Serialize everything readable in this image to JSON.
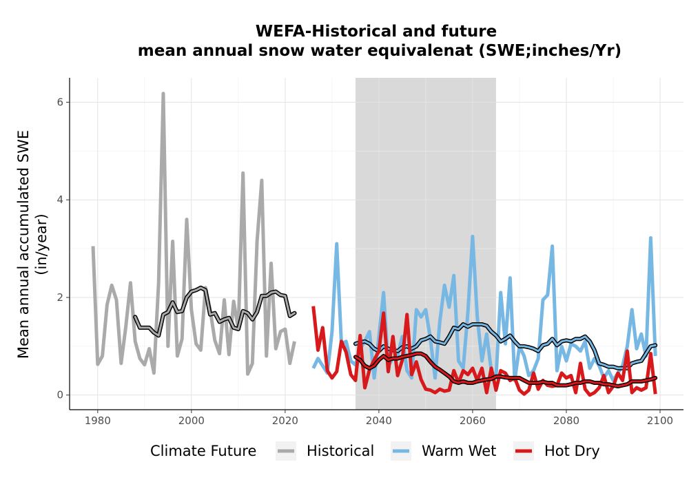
{
  "chart_data": {
    "type": "line",
    "title_line1": "WEFA-Historical and future",
    "title_line2": "mean annual snow water equivalenat (SWE;inches/Yr)",
    "ylabel_line1": "Mean annual accumulated SWE",
    "ylabel_line2": "(in/year)",
    "xlabel": "",
    "xlim": [
      1974,
      2105
    ],
    "ylim": [
      -0.3,
      6.5
    ],
    "x_ticks": [
      1980,
      2000,
      2020,
      2040,
      2060,
      2080,
      2100
    ],
    "y_ticks": [
      0,
      2,
      4,
      6
    ],
    "grid": true,
    "shaded_period": [
      2035,
      2065
    ],
    "legend": {
      "title": "Climate Future",
      "position": "bottom",
      "entries": [
        "Historical",
        "Warm Wet",
        "Hot Dry"
      ]
    },
    "colors": {
      "Historical": "#aaaaaa",
      "Warm Wet": "#77b7e3",
      "Hot Dry": "#d7191c",
      "smooth_outline": "#000000",
      "shade": "#d9d9d9"
    },
    "series": [
      {
        "name": "Historical",
        "x": [
          1979,
          1980,
          1981,
          1982,
          1983,
          1984,
          1985,
          1986,
          1987,
          1988,
          1989,
          1990,
          1991,
          1992,
          1993,
          1994,
          1995,
          1996,
          1997,
          1998,
          1999,
          2000,
          2001,
          2002,
          2003,
          2004,
          2005,
          2006,
          2007,
          2008,
          2009,
          2010,
          2011,
          2012,
          2013,
          2014,
          2015,
          2016,
          2017,
          2018,
          2019,
          2020,
          2021,
          2022
        ],
        "values": [
          3.05,
          0.63,
          0.8,
          1.85,
          2.25,
          1.95,
          0.65,
          1.4,
          2.3,
          1.1,
          0.75,
          0.62,
          0.95,
          0.45,
          2.3,
          6.18,
          1.0,
          3.15,
          0.8,
          1.15,
          3.6,
          1.75,
          1.05,
          0.92,
          2.2,
          1.75,
          1.12,
          0.85,
          1.95,
          0.83,
          1.92,
          1.35,
          4.55,
          0.43,
          0.65,
          3.15,
          4.4,
          0.8,
          2.7,
          0.95,
          1.3,
          1.35,
          0.65,
          1.1
        ]
      },
      {
        "name": "Historical-smoothed",
        "x": [
          1988,
          1989,
          1990,
          1991,
          1992,
          1993,
          1994,
          1995,
          1996,
          1997,
          1998,
          1999,
          2000,
          2001,
          2002,
          2003,
          2004,
          2005,
          2006,
          2007,
          2008,
          2009,
          2010,
          2011,
          2012,
          2013,
          2014,
          2015,
          2016,
          2017,
          2018,
          2019,
          2020,
          2021,
          2022
        ],
        "values": [
          1.6,
          1.38,
          1.38,
          1.38,
          1.28,
          1.22,
          1.65,
          1.7,
          1.9,
          1.7,
          1.72,
          2.0,
          2.12,
          2.15,
          2.2,
          2.15,
          1.65,
          1.68,
          1.5,
          1.55,
          1.58,
          1.38,
          1.35,
          1.72,
          1.68,
          1.55,
          1.7,
          2.03,
          2.03,
          2.1,
          2.12,
          2.05,
          2.03,
          1.62,
          1.68
        ]
      },
      {
        "name": "Warm Wet",
        "x": [
          2026,
          2027,
          2028,
          2029,
          2030,
          2031,
          2032,
          2033,
          2034,
          2035,
          2036,
          2037,
          2038,
          2039,
          2040,
          2041,
          2042,
          2043,
          2044,
          2045,
          2046,
          2047,
          2048,
          2049,
          2050,
          2051,
          2052,
          2053,
          2054,
          2055,
          2056,
          2057,
          2058,
          2059,
          2060,
          2061,
          2062,
          2063,
          2064,
          2065,
          2066,
          2067,
          2068,
          2069,
          2070,
          2071,
          2072,
          2073,
          2074,
          2075,
          2076,
          2077,
          2078,
          2079,
          2080,
          2081,
          2082,
          2083,
          2084,
          2085,
          2086,
          2087,
          2088,
          2089,
          2090,
          2091,
          2092,
          2093,
          2094,
          2095,
          2096,
          2097,
          2098,
          2099
        ],
        "values": [
          0.55,
          0.75,
          0.6,
          0.45,
          1.3,
          3.1,
          1.05,
          1.1,
          0.7,
          0.62,
          0.95,
          1.1,
          1.3,
          0.35,
          1.2,
          2.1,
          0.6,
          0.75,
          0.8,
          1.2,
          0.5,
          0.35,
          1.75,
          1.6,
          1.75,
          1.15,
          0.35,
          1.5,
          2.25,
          1.8,
          2.45,
          0.7,
          0.55,
          1.7,
          3.25,
          1.6,
          0.7,
          1.25,
          0.5,
          0.35,
          2.1,
          1.05,
          2.4,
          0.3,
          1.0,
          0.8,
          0.4,
          0.5,
          0.75,
          1.95,
          2.05,
          3.05,
          0.5,
          1.0,
          0.7,
          1.05,
          1.0,
          0.9,
          1.1,
          0.55,
          0.75,
          0.6,
          0.35,
          0.5,
          0.3,
          0.45,
          0.6,
          1.0,
          1.75,
          0.95,
          1.25,
          0.8,
          3.22,
          0.8
        ]
      },
      {
        "name": "Warm Wet-smoothed",
        "x": [
          2035,
          2036,
          2037,
          2038,
          2039,
          2040,
          2041,
          2042,
          2043,
          2044,
          2045,
          2046,
          2047,
          2048,
          2049,
          2050,
          2051,
          2052,
          2053,
          2054,
          2055,
          2056,
          2057,
          2058,
          2059,
          2060,
          2061,
          2062,
          2063,
          2064,
          2065,
          2066,
          2067,
          2068,
          2069,
          2070,
          2071,
          2072,
          2073,
          2074,
          2075,
          2076,
          2077,
          2078,
          2079,
          2080,
          2081,
          2082,
          2083,
          2084,
          2085,
          2086,
          2087,
          2088,
          2089,
          2090,
          2091,
          2092,
          2093,
          2094,
          2095,
          2096,
          2097,
          2098,
          2099
        ],
        "values": [
          1.05,
          1.08,
          1.1,
          1.05,
          0.95,
          0.9,
          1.0,
          0.95,
          0.92,
          0.9,
          0.98,
          1.0,
          0.95,
          1.0,
          1.12,
          1.15,
          1.2,
          1.1,
          1.08,
          1.05,
          1.2,
          1.38,
          1.35,
          1.45,
          1.4,
          1.45,
          1.45,
          1.45,
          1.42,
          1.3,
          1.22,
          1.1,
          1.15,
          1.22,
          1.1,
          1.0,
          1.0,
          0.98,
          0.95,
          0.9,
          1.02,
          1.05,
          1.15,
          1.02,
          1.1,
          1.12,
          1.1,
          1.15,
          1.15,
          1.2,
          1.1,
          0.92,
          0.65,
          0.62,
          0.58,
          0.58,
          0.55,
          0.55,
          0.55,
          0.65,
          0.68,
          0.7,
          0.85,
          1.0,
          1.02
        ]
      },
      {
        "name": "Hot Dry",
        "x": [
          2026,
          2027,
          2028,
          2029,
          2030,
          2031,
          2032,
          2033,
          2034,
          2035,
          2036,
          2037,
          2038,
          2039,
          2040,
          2041,
          2042,
          2043,
          2044,
          2045,
          2046,
          2047,
          2048,
          2049,
          2050,
          2051,
          2052,
          2053,
          2054,
          2055,
          2056,
          2057,
          2058,
          2059,
          2060,
          2061,
          2062,
          2063,
          2064,
          2065,
          2066,
          2067,
          2068,
          2069,
          2070,
          2071,
          2072,
          2073,
          2074,
          2075,
          2076,
          2077,
          2078,
          2079,
          2080,
          2081,
          2082,
          2083,
          2084,
          2085,
          2086,
          2087,
          2088,
          2089,
          2090,
          2091,
          2092,
          2093,
          2094,
          2095,
          2096,
          2097,
          2098,
          2099
        ],
        "values": [
          1.82,
          0.92,
          1.38,
          0.5,
          0.35,
          0.48,
          1.1,
          0.88,
          0.42,
          0.3,
          1.22,
          0.15,
          0.52,
          0.72,
          0.9,
          1.68,
          0.48,
          1.2,
          0.4,
          0.72,
          1.65,
          0.42,
          0.68,
          0.32,
          0.12,
          0.1,
          0.05,
          0.12,
          0.08,
          0.1,
          0.5,
          0.25,
          0.5,
          0.42,
          0.55,
          0.3,
          0.55,
          0.05,
          0.55,
          0.1,
          0.5,
          0.45,
          0.3,
          0.35,
          0.1,
          0.02,
          0.1,
          0.45,
          0.12,
          0.3,
          0.2,
          0.18,
          0.2,
          0.45,
          0.35,
          0.4,
          0.05,
          0.65,
          0.12,
          0.0,
          0.05,
          0.15,
          0.4,
          0.05,
          0.18,
          0.45,
          0.3,
          0.9,
          0.05,
          0.15,
          0.1,
          0.15,
          0.85,
          0.02
        ]
      },
      {
        "name": "Hot Dry-smoothed",
        "x": [
          2035,
          2036,
          2037,
          2038,
          2039,
          2040,
          2041,
          2042,
          2043,
          2044,
          2045,
          2046,
          2047,
          2048,
          2049,
          2050,
          2051,
          2052,
          2053,
          2054,
          2055,
          2056,
          2057,
          2058,
          2059,
          2060,
          2061,
          2062,
          2063,
          2064,
          2065,
          2066,
          2067,
          2068,
          2069,
          2070,
          2071,
          2072,
          2073,
          2074,
          2075,
          2076,
          2077,
          2078,
          2079,
          2080,
          2081,
          2082,
          2083,
          2084,
          2085,
          2086,
          2087,
          2088,
          2089,
          2090,
          2091,
          2092,
          2093,
          2094,
          2095,
          2096,
          2097,
          2098,
          2099
        ],
        "values": [
          0.78,
          0.72,
          0.6,
          0.55,
          0.6,
          0.72,
          0.8,
          0.72,
          0.75,
          0.75,
          0.78,
          0.8,
          0.82,
          0.85,
          0.85,
          0.8,
          0.68,
          0.58,
          0.52,
          0.45,
          0.38,
          0.28,
          0.25,
          0.28,
          0.25,
          0.25,
          0.28,
          0.3,
          0.32,
          0.33,
          0.38,
          0.38,
          0.36,
          0.35,
          0.35,
          0.35,
          0.3,
          0.25,
          0.25,
          0.25,
          0.27,
          0.25,
          0.25,
          0.2,
          0.2,
          0.2,
          0.22,
          0.25,
          0.25,
          0.28,
          0.28,
          0.25,
          0.25,
          0.22,
          0.22,
          0.2,
          0.18,
          0.2,
          0.22,
          0.28,
          0.28,
          0.28,
          0.3,
          0.32,
          0.35
        ]
      }
    ]
  }
}
